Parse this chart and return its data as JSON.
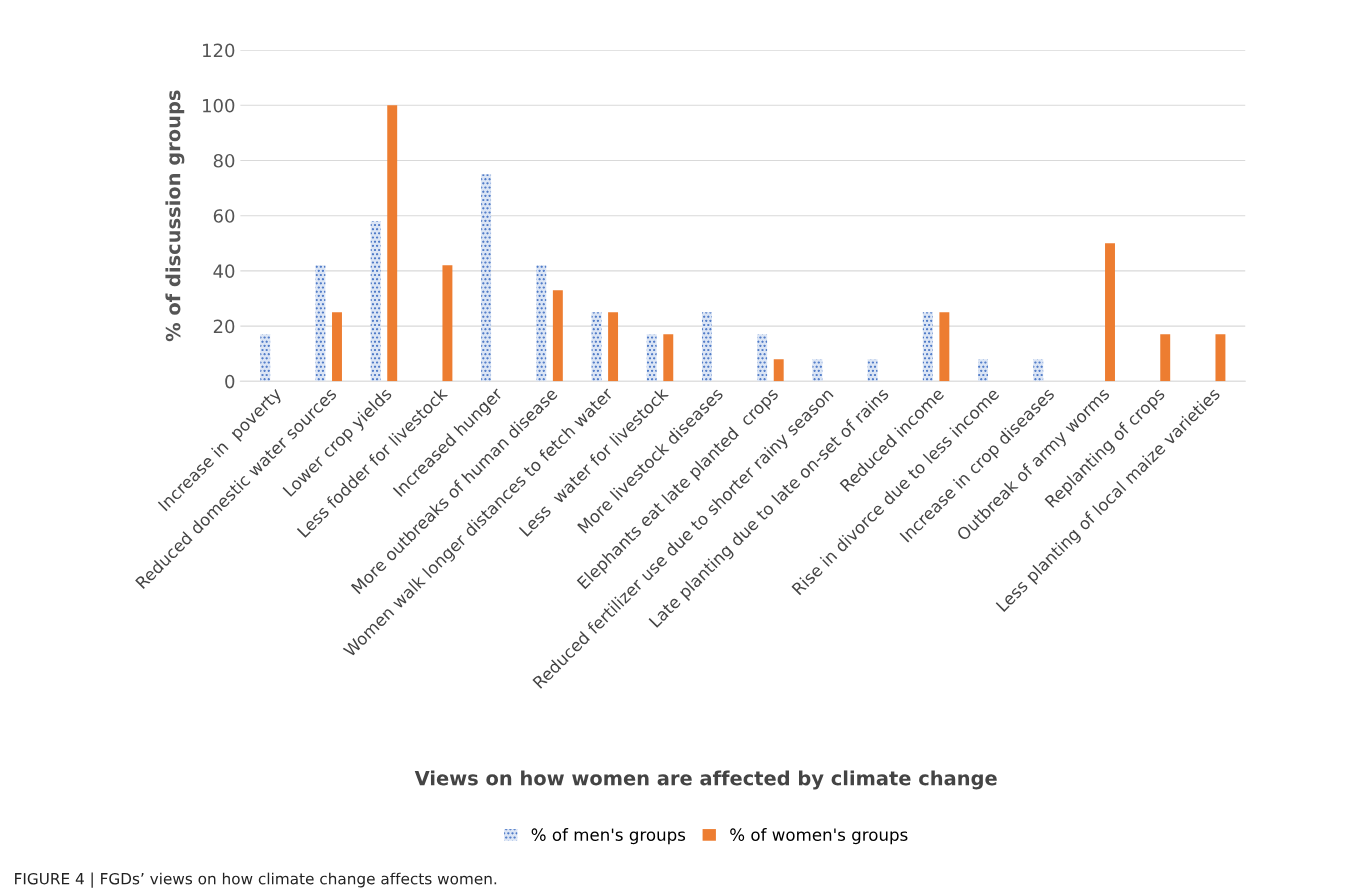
{
  "chart_data": {
    "type": "bar",
    "title": null,
    "xlabel": "Views on how women are affected by climate change",
    "ylabel": "% of discussion groups",
    "categories": [
      "Increase in  poverty",
      "Reduced domestic water sources",
      "Lower crop yields",
      "Less fodder for livestock",
      "Increased hunger",
      "More outbreaks of human disease",
      "Women walk longer distances to fetch water",
      "Less  water for livestock",
      "More livestock diseases",
      "Elephants eat late planted  crops",
      "Reduced fertilizer use due to shorter rainy season",
      "Late planting due to late on-set of rains",
      "Reduced income",
      "Rise in divorce due to less income",
      "Increase in crop diseases",
      "Outbreak of army worms",
      "Replanting of crops",
      "Less planting of local maize varieties"
    ],
    "series": [
      {
        "name": "% of men's groups",
        "color": "#4472c4",
        "values": [
          17,
          42,
          58,
          null,
          75,
          42,
          25,
          17,
          25,
          17,
          8,
          8,
          25,
          8,
          8,
          null,
          null,
          null
        ]
      },
      {
        "name": "% of women's groups",
        "color": "#ed7d31",
        "values": [
          null,
          25,
          100,
          42,
          null,
          33,
          25,
          17,
          null,
          8,
          null,
          null,
          25,
          null,
          null,
          50,
          17,
          17
        ]
      }
    ],
    "ylim": [
      0,
      120
    ],
    "yticks": [
      0,
      20,
      40,
      60,
      80,
      100,
      120
    ],
    "grid": "y",
    "legend": "bottom",
    "annotations": [
      "FIGURE 4 | FGDs’ views on how climate change affects women."
    ]
  }
}
